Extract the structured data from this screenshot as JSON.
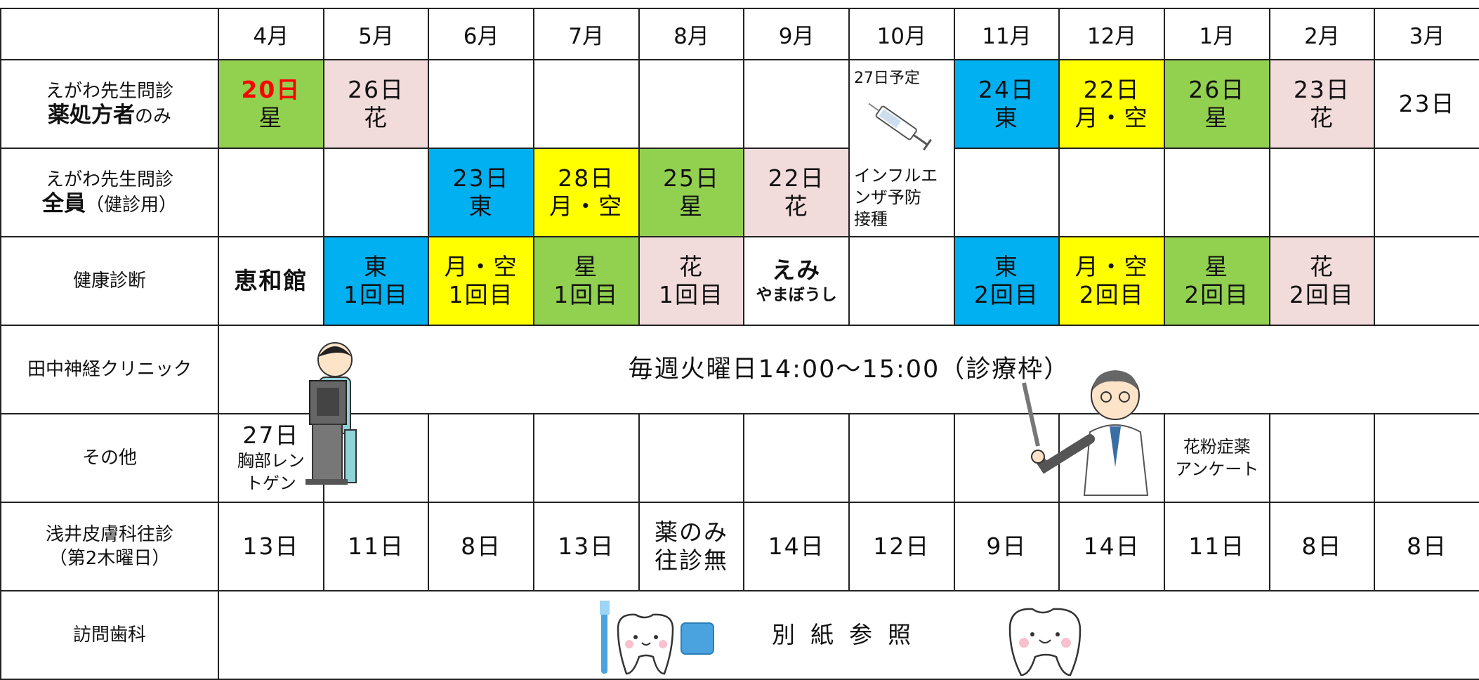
{
  "header": {
    "months": [
      "4月",
      "5月",
      "6月",
      "7月",
      "8月",
      "9月",
      "10月",
      "11月",
      "12月",
      "1月",
      "2月",
      "3月"
    ]
  },
  "rows": [
    {
      "label": [
        [
          {
            "text": "えがわ先生問診"
          }
        ],
        [
          {
            "text": "薬処方者",
            "bold": true
          },
          {
            "text": "のみ"
          }
        ]
      ],
      "cells": [
        {
          "lines": [
            "20日",
            "星"
          ],
          "color": "#92d050"
        },
        {
          "lines": [
            "26日",
            "花"
          ],
          "color": "#f2dcdb"
        },
        {
          "lines": []
        },
        {
          "lines": []
        },
        {
          "lines": []
        },
        {
          "lines": []
        },
        {
          "lines": [
            "27日予定",
            "インフルエ",
            "ンザ予防",
            "接種"
          ],
          "rowspan": 2
        },
        {
          "lines": [
            "24日",
            "東"
          ],
          "color": "#00b0f0"
        },
        {
          "lines": [
            "22日",
            "月・空"
          ],
          "color": "#ffff00"
        },
        {
          "lines": [
            "26日",
            "星"
          ],
          "color": "#92d050"
        },
        {
          "lines": [
            "23日",
            "花"
          ],
          "color": "#f2dcdb"
        },
        {
          "lines": [
            "23日"
          ]
        }
      ]
    },
    {
      "label": [
        [
          {
            "text": "えがわ先生問診"
          }
        ],
        [
          {
            "text": "全員",
            "bold": true
          },
          {
            "text": "（健診用）"
          }
        ]
      ],
      "cells": [
        {
          "lines": []
        },
        {
          "lines": []
        },
        {
          "lines": [
            "23日",
            "東"
          ],
          "color": "#00b0f0"
        },
        {
          "lines": [
            "28日",
            "月・空"
          ],
          "color": "#ffff00"
        },
        {
          "lines": [
            "25日",
            "星"
          ],
          "color": "#92d050"
        },
        {
          "lines": [
            "22日",
            "花"
          ],
          "color": "#f2dcdb"
        },
        {
          "lines": []
        },
        {
          "lines": []
        },
        {
          "lines": []
        },
        {
          "lines": []
        },
        {
          "lines": []
        }
      ]
    },
    {
      "label": [
        [
          {
            "text": "健康診断"
          }
        ]
      ],
      "cells": [
        {
          "lines": [
            "恵和館"
          ]
        },
        {
          "lines": [
            "東",
            "1回目"
          ],
          "color": "#00b0f0"
        },
        {
          "lines": [
            "月・空",
            "1回目"
          ],
          "color": "#ffff00"
        },
        {
          "lines": [
            "星",
            "1回目"
          ],
          "color": "#92d050"
        },
        {
          "lines": [
            "花",
            "1回目"
          ],
          "color": "#f2dcdb"
        },
        {
          "lines": [
            "えみ",
            "やまぼうし"
          ]
        },
        {
          "lines": []
        },
        {
          "lines": [
            "東",
            "2回目"
          ],
          "color": "#00b0f0"
        },
        {
          "lines": [
            "月・空",
            "2回目"
          ],
          "color": "#ffff00"
        },
        {
          "lines": [
            "星",
            "2回目"
          ],
          "color": "#92d050"
        },
        {
          "lines": [
            "花",
            "2回目"
          ],
          "color": "#f2dcdb"
        },
        {
          "lines": []
        }
      ]
    },
    {
      "label": [
        [
          {
            "text": "田中神経クリニック"
          }
        ]
      ],
      "cells": [
        {
          "lines": [
            "毎週火曜日14:00〜15:00（診療枠）"
          ],
          "colspan": 12
        }
      ]
    },
    {
      "label": [
        [
          {
            "text": "その他"
          }
        ]
      ],
      "cells": [
        {
          "lines": [
            "27日",
            "胸部レン",
            "トゲン"
          ]
        },
        {
          "lines": []
        },
        {
          "lines": []
        },
        {
          "lines": []
        },
        {
          "lines": []
        },
        {
          "lines": []
        },
        {
          "lines": []
        },
        {
          "lines": []
        },
        {
          "lines": []
        },
        {
          "lines": [
            "花粉症薬",
            "アンケート"
          ]
        },
        {
          "lines": []
        },
        {
          "lines": []
        }
      ]
    },
    {
      "label": [
        [
          {
            "text": "浅井皮膚科往診"
          }
        ],
        [
          {
            "text": "（第2木曜日）"
          }
        ]
      ],
      "cells": [
        {
          "lines": [
            "13日"
          ]
        },
        {
          "lines": [
            "11日"
          ]
        },
        {
          "lines": [
            "8日"
          ]
        },
        {
          "lines": [
            "13日"
          ]
        },
        {
          "lines": [
            "薬のみ",
            "往診無"
          ]
        },
        {
          "lines": [
            "14日"
          ]
        },
        {
          "lines": [
            "12日"
          ]
        },
        {
          "lines": [
            "9日"
          ]
        },
        {
          "lines": [
            "14日"
          ]
        },
        {
          "lines": [
            "11日"
          ]
        },
        {
          "lines": [
            "8日"
          ]
        },
        {
          "lines": [
            "8日"
          ]
        }
      ]
    },
    {
      "label": [
        [
          {
            "text": "訪問歯科"
          }
        ]
      ],
      "cells": [
        {
          "lines": [
            "別紙参照"
          ],
          "colspan": 12
        }
      ]
    }
  ]
}
